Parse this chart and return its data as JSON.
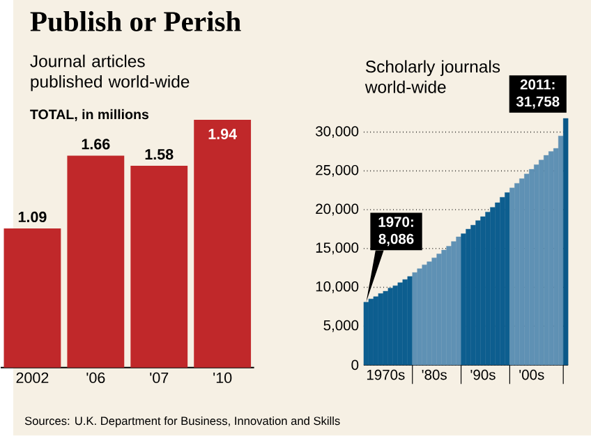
{
  "chart_data": [
    {
      "type": "bar",
      "title": "Publish or Perish",
      "subtitle": "Journal articles published world-wide",
      "ylabel": "TOTAL, in millions",
      "categories": [
        "2002",
        "'06",
        "'07",
        "'10"
      ],
      "values": [
        1.09,
        1.66,
        1.58,
        1.94
      ],
      "color": "#c0282a",
      "data_labels": true,
      "annotations": [
        "Sources: U.K. Department for Business, Innovation and Skills"
      ]
    },
    {
      "type": "bar",
      "title": "Scholarly journals world-wide",
      "categories": [
        null,
        null,
        null,
        null,
        "1970s",
        null,
        null,
        null,
        null,
        null,
        null,
        null,
        null,
        null,
        "'80s",
        null,
        null,
        null,
        null,
        null,
        null,
        null,
        null,
        null,
        "'90s",
        null,
        null,
        null,
        null,
        null,
        null,
        null,
        null,
        null,
        "'00s",
        null,
        null,
        null,
        null,
        null,
        null,
        null
      ],
      "values": [
        8086,
        8500,
        8800,
        9200,
        9500,
        9900,
        10200,
        10600,
        11000,
        11400,
        11900,
        12400,
        12900,
        13300,
        13800,
        14300,
        14800,
        15300,
        15900,
        16500,
        16900,
        17500,
        18000,
        18600,
        19100,
        19700,
        20300,
        20900,
        21600,
        22200,
        22800,
        23400,
        24000,
        24600,
        25200,
        25800,
        26400,
        27000,
        27500,
        27900,
        29500,
        31758
      ],
      "colors": [
        "#0d5e8f",
        "#0d5e8f",
        "#0d5e8f",
        "#0d5e8f",
        "#0d5e8f",
        "#0d5e8f",
        "#0d5e8f",
        "#0d5e8f",
        "#0d5e8f",
        "#0d5e8f",
        "#5f91b4",
        "#5f91b4",
        "#5f91b4",
        "#5f91b4",
        "#5f91b4",
        "#5f91b4",
        "#5f91b4",
        "#5f91b4",
        "#5f91b4",
        "#5f91b4",
        "#0d5e8f",
        "#0d5e8f",
        "#0d5e8f",
        "#0d5e8f",
        "#0d5e8f",
        "#0d5e8f",
        "#0d5e8f",
        "#0d5e8f",
        "#0d5e8f",
        "#0d5e8f",
        "#5f91b4",
        "#5f91b4",
        "#5f91b4",
        "#5f91b4",
        "#5f91b4",
        "#5f91b4",
        "#5f91b4",
        "#5f91b4",
        "#5f91b4",
        "#5f91b4",
        "#5f91b4",
        "#0a5888"
      ],
      "ylim": [
        0,
        32000
      ],
      "yticks": [
        0,
        {
          "value": 5000,
          "label": "5,000"
        },
        {
          "value": 10000,
          "label": "10,000"
        },
        {
          "value": 15000,
          "label": "15,000"
        },
        {
          "value": 20000,
          "label": "20,000"
        },
        {
          "value": 25000,
          "label": "25,000"
        },
        {
          "value": 30000,
          "label": "30,000"
        }
      ],
      "grid": "y",
      "annotations": [
        "1970: 8,086",
        "2011: 31,758"
      ]
    }
  ]
}
